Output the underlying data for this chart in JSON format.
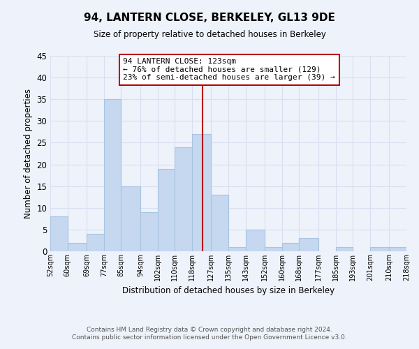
{
  "title": "94, LANTERN CLOSE, BERKELEY, GL13 9DE",
  "subtitle": "Size of property relative to detached houses in Berkeley",
  "xlabel": "Distribution of detached houses by size in Berkeley",
  "ylabel": "Number of detached properties",
  "bin_edges": [
    52,
    60,
    69,
    77,
    85,
    94,
    102,
    110,
    118,
    127,
    135,
    143,
    152,
    160,
    168,
    177,
    185,
    193,
    201,
    210,
    218
  ],
  "counts": [
    8,
    2,
    4,
    35,
    15,
    9,
    19,
    24,
    27,
    13,
    1,
    5,
    1,
    2,
    3,
    0,
    1,
    0,
    1,
    1
  ],
  "bar_color": "#c5d8f0",
  "bar_edge_color": "#a8c4e0",
  "vline_x": 123,
  "vline_color": "#bb0000",
  "annotation_text": "94 LANTERN CLOSE: 123sqm\n← 76% of detached houses are smaller (129)\n23% of semi-detached houses are larger (39) →",
  "annotation_box_color": "#ffffff",
  "annotation_box_edge": "#bb0000",
  "ylim": [
    0,
    45
  ],
  "yticks": [
    0,
    5,
    10,
    15,
    20,
    25,
    30,
    35,
    40,
    45
  ],
  "tick_labels": [
    "52sqm",
    "60sqm",
    "69sqm",
    "77sqm",
    "85sqm",
    "94sqm",
    "102sqm",
    "110sqm",
    "118sqm",
    "127sqm",
    "135sqm",
    "143sqm",
    "152sqm",
    "160sqm",
    "168sqm",
    "177sqm",
    "185sqm",
    "193sqm",
    "201sqm",
    "210sqm",
    "218sqm"
  ],
  "footer_text": "Contains HM Land Registry data © Crown copyright and database right 2024.\nContains public sector information licensed under the Open Government Licence v3.0.",
  "background_color": "#eef2fa",
  "grid_color": "#d8dff0"
}
